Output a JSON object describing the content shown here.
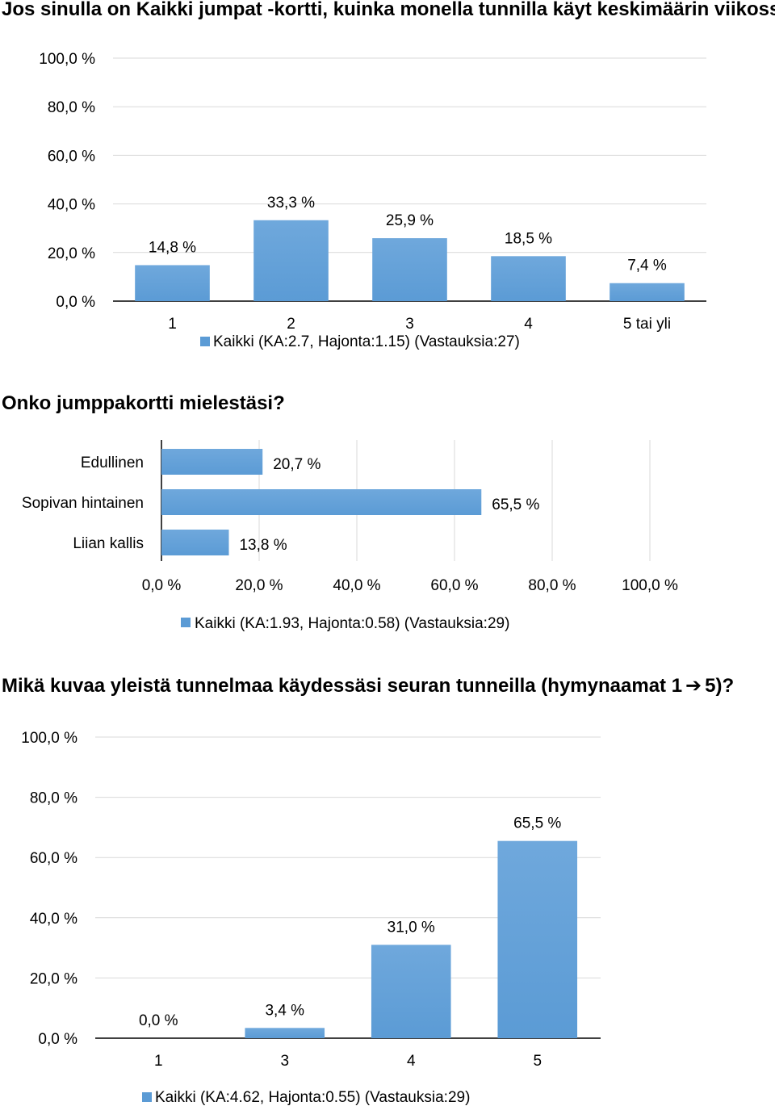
{
  "questions": [
    {
      "title": "Jos sinulla on Kaikki jumpat -kortti, kuinka monella tunnilla käyt keskimäärin viikossa?",
      "legend": "Kaikki (KA:2.7, Hajonta:1.15) (Vastauksia:27)"
    },
    {
      "title": "Onko jumppakortti mielestäsi?",
      "legend": "Kaikki (KA:1.93, Hajonta:0.58) (Vastauksia:29)"
    },
    {
      "title_before": "Mikä kuvaa yleistä tunnelmaa käydessäsi seuran tunneilla (hymynaamat 1",
      "title_after": "5)?",
      "arrow": "➔",
      "legend": "Kaikki (KA:4.62, Hajonta:0.55) (Vastauksia:29)"
    }
  ],
  "colors": {
    "bar": "#5b9bd5",
    "grid": "#d9d9d9",
    "axis": "#000000"
  },
  "chart_data": [
    {
      "type": "bar",
      "orientation": "vertical",
      "categories": [
        "1",
        "2",
        "3",
        "4",
        "5 tai yli"
      ],
      "values": [
        14.8,
        33.3,
        25.9,
        18.5,
        7.4
      ],
      "value_labels": [
        "14,8 %",
        "33,3 %",
        "25,9 %",
        "18,5 %",
        "7,4 %"
      ],
      "ylim": [
        0,
        100
      ],
      "yticks": [
        "0,0 %",
        "20,0 %",
        "40,0 %",
        "60,0 %",
        "80,0 %",
        "100,0 %"
      ],
      "grid": true,
      "legend_position": "bottom"
    },
    {
      "type": "bar",
      "orientation": "horizontal",
      "categories": [
        "Edullinen",
        "Sopivan hintainen",
        "Liian kallis"
      ],
      "values": [
        20.7,
        65.5,
        13.8
      ],
      "value_labels": [
        "20,7 %",
        "65,5 %",
        "13,8 %"
      ],
      "xlim": [
        0,
        100
      ],
      "xticks": [
        "0,0 %",
        "20,0 %",
        "40,0 %",
        "60,0 %",
        "80,0 %",
        "100,0 %"
      ],
      "grid": true,
      "legend_position": "bottom"
    },
    {
      "type": "bar",
      "orientation": "vertical",
      "categories": [
        "1",
        "3",
        "4",
        "5"
      ],
      "values": [
        0.0,
        3.4,
        31.0,
        65.5
      ],
      "value_labels": [
        "0,0 %",
        "3,4 %",
        "31,0 %",
        "65,5 %"
      ],
      "ylim": [
        0,
        100
      ],
      "yticks": [
        "0,0 %",
        "20,0 %",
        "40,0 %",
        "60,0 %",
        "80,0 %",
        "100,0 %"
      ],
      "grid": true,
      "legend_position": "bottom"
    }
  ]
}
